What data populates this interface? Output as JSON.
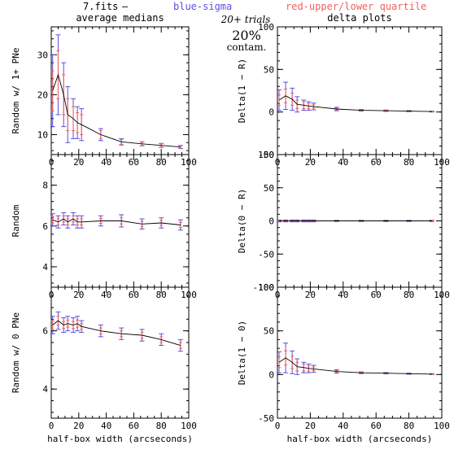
{
  "header": {
    "file": "7.fits",
    "dash": "—",
    "blue_label": "blue-sigma",
    "red_label": "red-upper/lower quartile",
    "trials": "20+ trials",
    "percent": "20%",
    "contam": "contam."
  },
  "colors": {
    "blue": "#5a50e0",
    "red": "#f06060",
    "line": "#000000"
  },
  "chart_data": [
    {
      "type": "line",
      "title": "average medians",
      "xlabel": "",
      "ylabel": "Random w/ 1+ PNe",
      "xlim": [
        0,
        100
      ],
      "ylim": [
        5,
        37
      ],
      "xticks": [
        0,
        20,
        40,
        60,
        80,
        100
      ],
      "yticks": [
        10,
        20,
        30
      ],
      "x": [
        1,
        5,
        9,
        12,
        16,
        19,
        22,
        36,
        51,
        66,
        80,
        94
      ],
      "y": [
        21,
        25,
        20,
        15,
        14,
        13,
        12.5,
        10,
        8.2,
        7.7,
        7.3,
        6.9
      ],
      "sigma": [
        9,
        10,
        8,
        7,
        5,
        4,
        4,
        1.5,
        0.8,
        0.5,
        0.5,
        0.4
      ],
      "quartile": [
        5,
        6,
        5,
        4,
        3,
        2.5,
        2.5,
        1,
        0.6,
        0.4,
        0.4,
        0.3
      ]
    },
    {
      "type": "line",
      "title": "delta plots",
      "xlabel": "",
      "ylabel": "Delta(1 − R)",
      "xlim": [
        0,
        100
      ],
      "ylim": [
        -50,
        100
      ],
      "xticks": [
        0,
        20,
        40,
        60,
        80,
        100
      ],
      "yticks": [
        -50,
        0,
        50,
        100
      ],
      "x": [
        1,
        5,
        9,
        12,
        16,
        19,
        22,
        36,
        51,
        66,
        80,
        94
      ],
      "y": [
        14,
        19,
        15,
        9,
        8,
        7,
        6.5,
        3.5,
        2,
        1.5,
        1,
        0.5
      ],
      "sigma": [
        12,
        16,
        13,
        9,
        6,
        5,
        4,
        2,
        1,
        0.8,
        0.7,
        0.5
      ],
      "quartile": [
        6,
        8,
        7,
        5,
        4,
        3,
        2,
        1,
        0.5,
        0.4,
        0.4,
        0.3
      ]
    },
    {
      "type": "line",
      "title": "",
      "xlabel": "",
      "ylabel": "Random",
      "xlim": [
        0,
        100
      ],
      "ylim": [
        3,
        9.5
      ],
      "xticks": [
        0,
        20,
        40,
        60,
        80,
        100
      ],
      "yticks": [
        4,
        6,
        8
      ],
      "x": [
        1,
        5,
        9,
        12,
        16,
        19,
        22,
        36,
        51,
        66,
        80,
        94
      ],
      "y": [
        6.3,
        6.2,
        6.35,
        6.2,
        6.35,
        6.2,
        6.2,
        6.25,
        6.25,
        6.1,
        6.15,
        6.05
      ],
      "sigma": [
        0.3,
        0.3,
        0.3,
        0.3,
        0.3,
        0.3,
        0.3,
        0.25,
        0.3,
        0.25,
        0.25,
        0.25
      ],
      "quartile": [
        0.15,
        0.15,
        0.15,
        0.15,
        0.15,
        0.15,
        0.15,
        0.12,
        0.15,
        0.12,
        0.12,
        0.12
      ]
    },
    {
      "type": "line",
      "title": "",
      "xlabel": "",
      "ylabel": "Delta(0 − R)",
      "xlim": [
        0,
        100
      ],
      "ylim": [
        -100,
        100
      ],
      "xticks": [
        0,
        20,
        40,
        60,
        80,
        100
      ],
      "yticks": [
        -100,
        -50,
        0,
        50,
        100
      ],
      "x": [
        1,
        5,
        9,
        12,
        16,
        19,
        22,
        36,
        51,
        66,
        80,
        94
      ],
      "y": [
        0,
        0,
        0,
        0,
        0,
        0,
        0,
        0,
        0,
        0,
        0,
        0
      ],
      "sigma": [
        1.5,
        1.5,
        1.5,
        1.5,
        1.5,
        1.5,
        1.5,
        1,
        1,
        1,
        1,
        1
      ],
      "quartile": [
        0.8,
        0.8,
        0.8,
        0.8,
        0.8,
        0.8,
        0.8,
        0.5,
        0.5,
        0.5,
        0.5,
        0.5
      ]
    },
    {
      "type": "line",
      "title": "",
      "xlabel": "half-box width (arcseconds)",
      "ylabel": "Random w/ 0 PNe",
      "xlim": [
        0,
        100
      ],
      "ylim": [
        3,
        7.5
      ],
      "xticks": [
        0,
        20,
        40,
        60,
        80,
        100
      ],
      "yticks": [
        4,
        6
      ],
      "x": [
        1,
        5,
        9,
        12,
        16,
        19,
        22,
        36,
        51,
        66,
        80,
        94
      ],
      "y": [
        6.2,
        6.35,
        6.2,
        6.25,
        6.2,
        6.25,
        6.15,
        6.0,
        5.9,
        5.85,
        5.7,
        5.5
      ],
      "sigma": [
        0.3,
        0.3,
        0.25,
        0.25,
        0.25,
        0.25,
        0.2,
        0.2,
        0.2,
        0.2,
        0.2,
        0.2
      ],
      "quartile": [
        0.15,
        0.15,
        0.12,
        0.12,
        0.12,
        0.12,
        0.1,
        0.1,
        0.1,
        0.1,
        0.1,
        0.1
      ]
    },
    {
      "type": "line",
      "title": "",
      "xlabel": "half-box width (arcseconds)",
      "ylabel": "Delta(1 − 0)",
      "xlim": [
        0,
        100
      ],
      "ylim": [
        -50,
        100
      ],
      "xticks": [
        0,
        20,
        40,
        60,
        80,
        100
      ],
      "yticks": [
        -50,
        0,
        50,
        100
      ],
      "x": [
        1,
        5,
        9,
        12,
        16,
        19,
        22,
        36,
        51,
        66,
        80,
        94
      ],
      "y": [
        14,
        19,
        14,
        9,
        8,
        7,
        6.5,
        3.5,
        2,
        1.5,
        1,
        0.5
      ],
      "sigma": [
        12,
        17,
        13,
        9,
        6,
        5,
        4,
        2,
        1,
        0.8,
        0.7,
        0.5
      ],
      "quartile": [
        6,
        8,
        7,
        5,
        4,
        3,
        2,
        1,
        0.5,
        0.4,
        0.4,
        0.3
      ]
    }
  ]
}
